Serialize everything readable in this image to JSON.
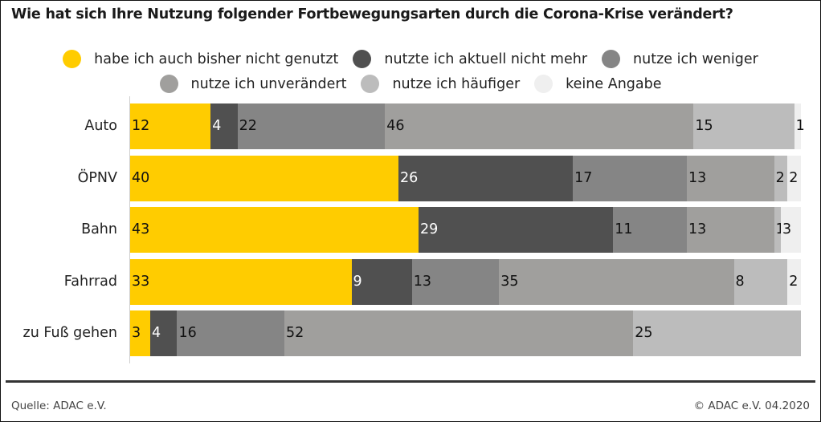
{
  "chart_data": {
    "type": "bar",
    "orientation": "horizontal",
    "stacked": true,
    "title": "Wie hat sich Ihre Nutzung folgender Fortbewegungsarten durch die Corona-Krise verändert?",
    "xlabel": "",
    "ylabel": "",
    "xlim": [
      0,
      100
    ],
    "unit": "%",
    "grid": false,
    "legend_position": "top",
    "categories": [
      "Auto",
      "ÖPNV",
      "Bahn",
      "Fahrrad",
      "zu Fuß gehen"
    ],
    "series": [
      {
        "name": "habe ich auch bisher nicht genutzt",
        "color": "#ffcc00",
        "label_color": "#111111",
        "values": [
          12,
          40,
          43,
          33,
          3
        ]
      },
      {
        "name": "nutzte ich aktuell nicht mehr",
        "color": "#505050",
        "label_color": "#ffffff",
        "values": [
          4,
          26,
          29,
          9,
          4
        ]
      },
      {
        "name": "nutze ich weniger",
        "color": "#858585",
        "label_color": "#111111",
        "values": [
          22,
          17,
          11,
          13,
          16
        ]
      },
      {
        "name": "nutze ich unverändert",
        "color": "#a09f9d",
        "label_color": "#111111",
        "values": [
          46,
          13,
          13,
          35,
          52
        ]
      },
      {
        "name": "nutze ich häufiger",
        "color": "#bcbcbc",
        "label_color": "#111111",
        "values": [
          15,
          2,
          1,
          8,
          25
        ]
      },
      {
        "name": "keine Angabe",
        "color": "#efefef",
        "label_color": "#111111",
        "values": [
          1,
          2,
          3,
          2,
          0
        ]
      }
    ]
  },
  "footer": {
    "source": "Quelle: ADAC e.V.",
    "copyright": "© ADAC e.V. 04.2020"
  }
}
